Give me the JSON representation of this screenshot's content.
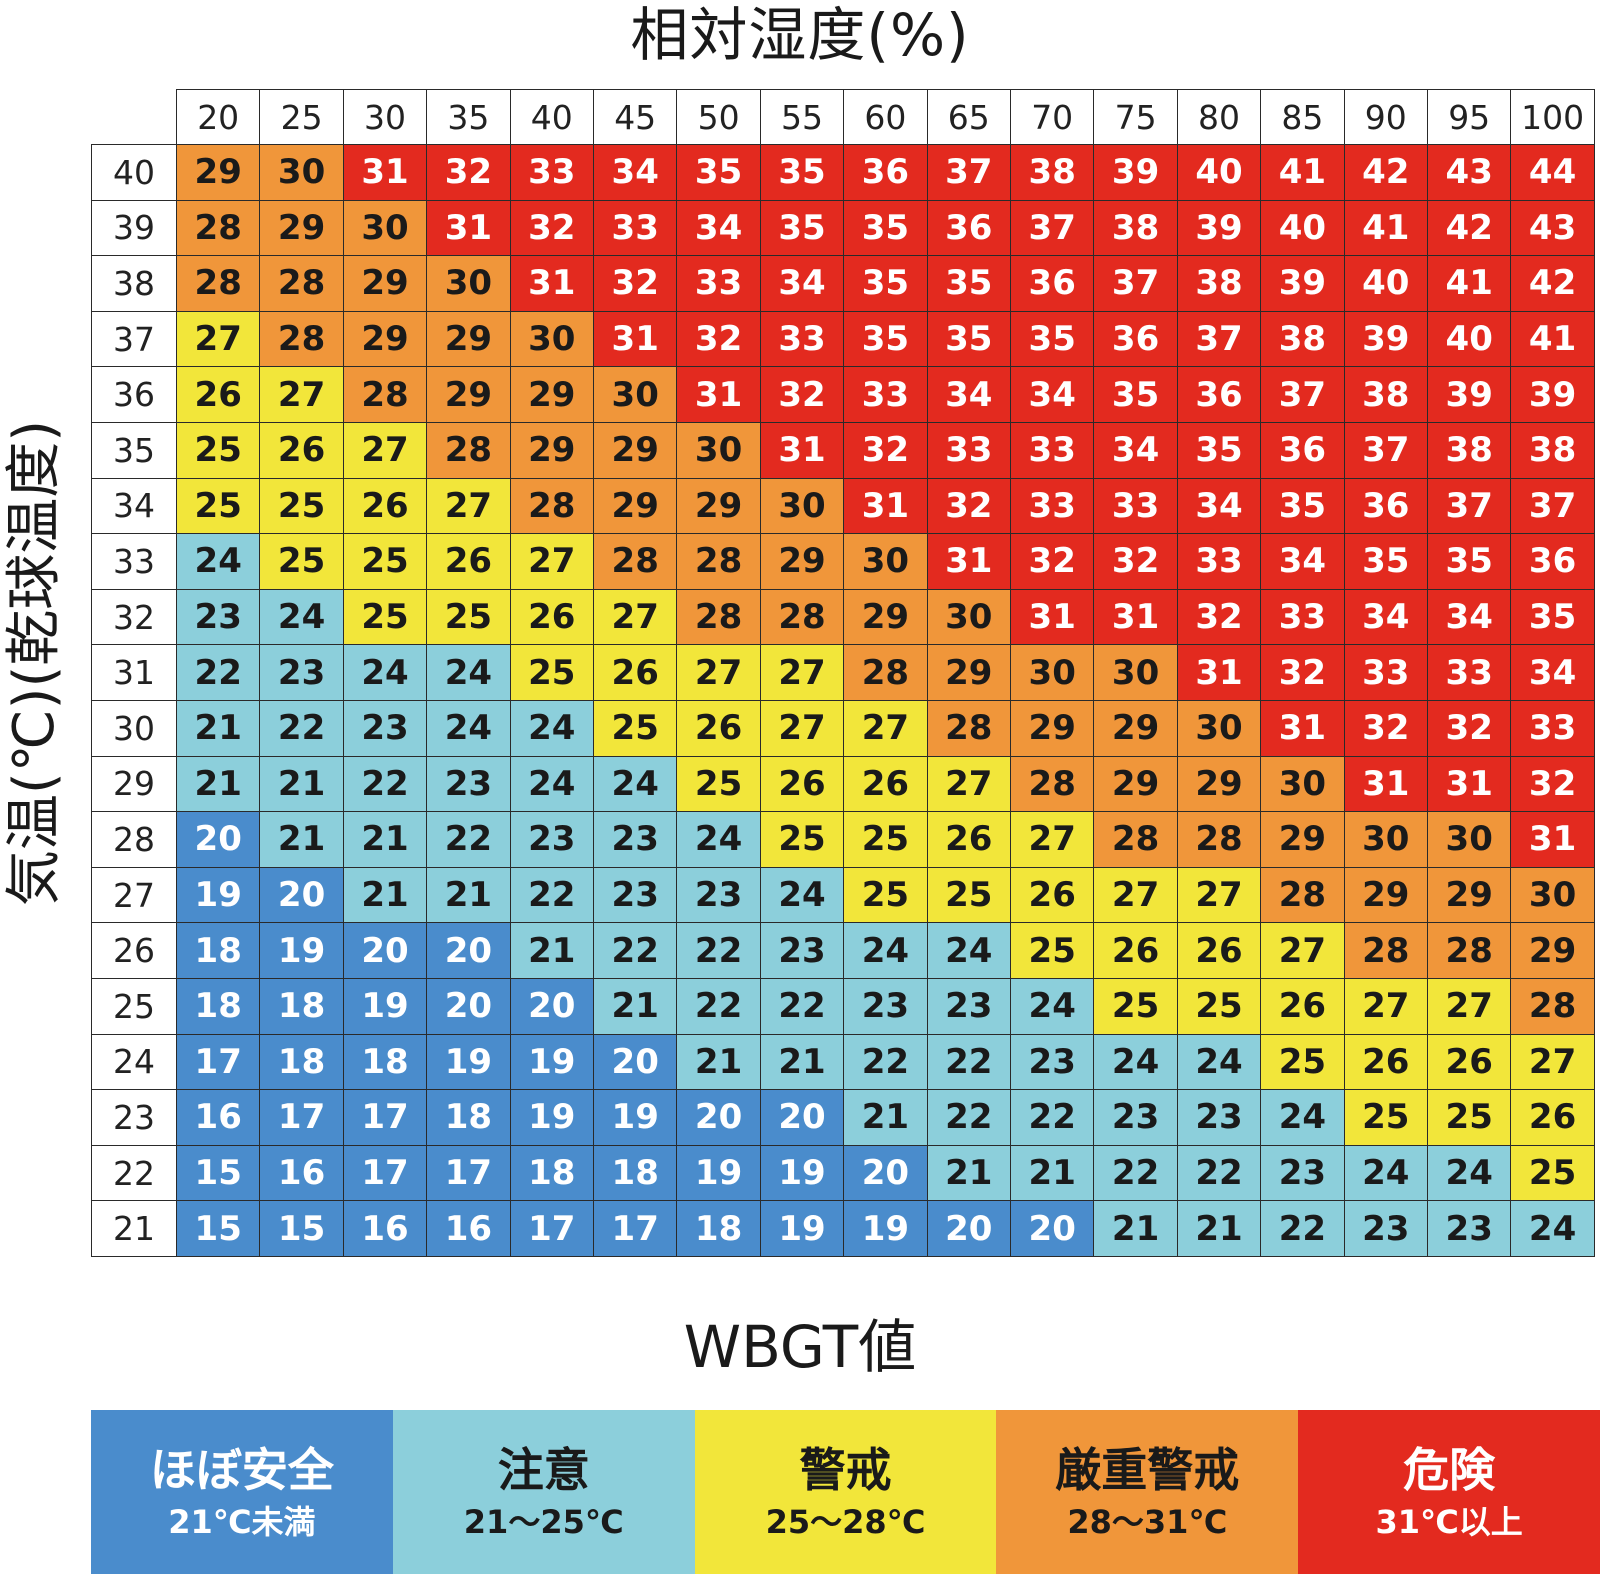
{
  "chart_data": {
    "type": "heatmap",
    "title": "",
    "xlabel": "相対湿度(%)",
    "ylabel": "気温(℃)(乾球温度)",
    "x": [
      20,
      25,
      30,
      35,
      40,
      45,
      50,
      55,
      60,
      65,
      70,
      75,
      80,
      85,
      90,
      95,
      100
    ],
    "y": [
      40,
      39,
      38,
      37,
      36,
      35,
      34,
      33,
      32,
      31,
      30,
      29,
      28,
      27,
      26,
      25,
      24,
      23,
      22,
      21
    ],
    "values": [
      [
        29,
        30,
        31,
        32,
        33,
        34,
        35,
        35,
        36,
        37,
        38,
        39,
        40,
        41,
        42,
        43,
        44
      ],
      [
        28,
        29,
        30,
        31,
        32,
        33,
        34,
        35,
        35,
        36,
        37,
        38,
        39,
        40,
        41,
        42,
        43
      ],
      [
        28,
        28,
        29,
        30,
        31,
        32,
        33,
        34,
        35,
        35,
        36,
        37,
        38,
        39,
        40,
        41,
        42
      ],
      [
        27,
        28,
        29,
        29,
        30,
        31,
        32,
        33,
        35,
        35,
        35,
        36,
        37,
        38,
        39,
        40,
        41
      ],
      [
        26,
        27,
        28,
        29,
        29,
        30,
        31,
        32,
        33,
        34,
        34,
        35,
        36,
        37,
        38,
        39,
        39
      ],
      [
        25,
        26,
        27,
        28,
        29,
        29,
        30,
        31,
        32,
        33,
        33,
        34,
        35,
        36,
        37,
        38,
        38
      ],
      [
        25,
        25,
        26,
        27,
        28,
        29,
        29,
        30,
        31,
        32,
        33,
        33,
        34,
        35,
        36,
        37,
        37
      ],
      [
        24,
        25,
        25,
        26,
        27,
        28,
        28,
        29,
        30,
        31,
        32,
        32,
        33,
        34,
        35,
        35,
        36
      ],
      [
        23,
        24,
        25,
        25,
        26,
        27,
        28,
        28,
        29,
        30,
        31,
        31,
        32,
        33,
        34,
        34,
        35
      ],
      [
        22,
        23,
        24,
        24,
        25,
        26,
        27,
        27,
        28,
        29,
        30,
        30,
        31,
        32,
        33,
        33,
        34
      ],
      [
        21,
        22,
        23,
        24,
        24,
        25,
        26,
        27,
        27,
        28,
        29,
        29,
        30,
        31,
        32,
        32,
        33
      ],
      [
        21,
        21,
        22,
        23,
        24,
        24,
        25,
        26,
        26,
        27,
        28,
        29,
        29,
        30,
        31,
        31,
        32
      ],
      [
        20,
        21,
        21,
        22,
        23,
        23,
        24,
        25,
        25,
        26,
        27,
        28,
        28,
        29,
        30,
        30,
        31
      ],
      [
        19,
        20,
        21,
        21,
        22,
        23,
        23,
        24,
        25,
        25,
        26,
        27,
        27,
        28,
        29,
        29,
        30
      ],
      [
        18,
        19,
        20,
        20,
        21,
        22,
        22,
        23,
        24,
        24,
        25,
        26,
        26,
        27,
        28,
        28,
        29
      ],
      [
        18,
        18,
        19,
        20,
        20,
        21,
        22,
        22,
        23,
        23,
        24,
        25,
        25,
        26,
        27,
        27,
        28
      ],
      [
        17,
        18,
        18,
        19,
        19,
        20,
        21,
        21,
        22,
        22,
        23,
        24,
        24,
        25,
        26,
        26,
        27
      ],
      [
        16,
        17,
        17,
        18,
        19,
        19,
        20,
        20,
        21,
        22,
        22,
        23,
        23,
        24,
        25,
        25,
        26
      ],
      [
        15,
        16,
        17,
        17,
        18,
        18,
        19,
        19,
        20,
        21,
        21,
        22,
        22,
        23,
        24,
        24,
        25
      ],
      [
        15,
        15,
        16,
        16,
        17,
        17,
        18,
        19,
        19,
        20,
        20,
        21,
        21,
        22,
        23,
        23,
        24
      ]
    ],
    "categories_scale": [
      {
        "name": "ほぼ安全",
        "range": "21℃未満",
        "min": null,
        "max": 21,
        "color": "#4a8ccc",
        "text_color": "#ffffff"
      },
      {
        "name": "注意",
        "range": "21～25℃",
        "min": 21,
        "max": 25,
        "color": "#8ccfdb",
        "text_color": "#1a1a1a"
      },
      {
        "name": "警戒",
        "range": "25～28℃",
        "min": 25,
        "max": 28,
        "color": "#f2e63a",
        "text_color": "#1a1a1a"
      },
      {
        "name": "厳重警戒",
        "range": "28～31℃",
        "min": 28,
        "max": 31,
        "color": "#f0963a",
        "text_color": "#1a1a1a"
      },
      {
        "name": "危険",
        "range": "31℃以上",
        "min": 31,
        "max": null,
        "color": "#e32a1f",
        "text_color": "#ffffff"
      }
    ],
    "grid": true
  },
  "legend": {
    "title": "WBGT値",
    "items": [
      {
        "name": "ほぼ安全",
        "range": "21℃未満"
      },
      {
        "name": "注意",
        "range": "21～25℃"
      },
      {
        "name": "警戒",
        "range": "25～28℃"
      },
      {
        "name": "厳重警戒",
        "range": "28～31℃"
      },
      {
        "name": "危険",
        "range": "31℃以上"
      }
    ]
  }
}
